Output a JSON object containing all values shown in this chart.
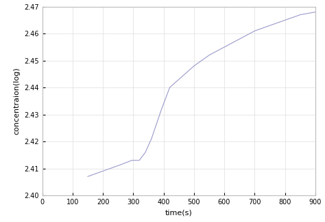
{
  "title": "",
  "xlabel": "time(s)",
  "ylabel": "concentraion(log)",
  "xlim": [
    0,
    900
  ],
  "ylim": [
    2.4,
    2.47
  ],
  "xticks": [
    0,
    100,
    200,
    300,
    400,
    500,
    600,
    700,
    800,
    900
  ],
  "yticks": [
    2.4,
    2.41,
    2.42,
    2.43,
    2.44,
    2.45,
    2.46,
    2.47
  ],
  "line_color": "#9999cc",
  "line_width": 0.8,
  "background_color": "#ffffff",
  "axes_facecolor": "#ffffff",
  "grid_color": "#dddddd",
  "key_points_x": [
    150,
    200,
    250,
    295,
    310,
    320,
    340,
    360,
    390,
    420,
    450,
    460,
    500,
    550,
    600,
    650,
    700,
    750,
    800,
    850,
    900
  ],
  "key_points_y": [
    2.407,
    2.409,
    2.411,
    2.413,
    2.413,
    2.413,
    2.416,
    2.421,
    2.431,
    2.44,
    2.443,
    2.444,
    2.448,
    2.452,
    2.455,
    2.458,
    2.461,
    2.463,
    2.465,
    2.467,
    2.468
  ]
}
